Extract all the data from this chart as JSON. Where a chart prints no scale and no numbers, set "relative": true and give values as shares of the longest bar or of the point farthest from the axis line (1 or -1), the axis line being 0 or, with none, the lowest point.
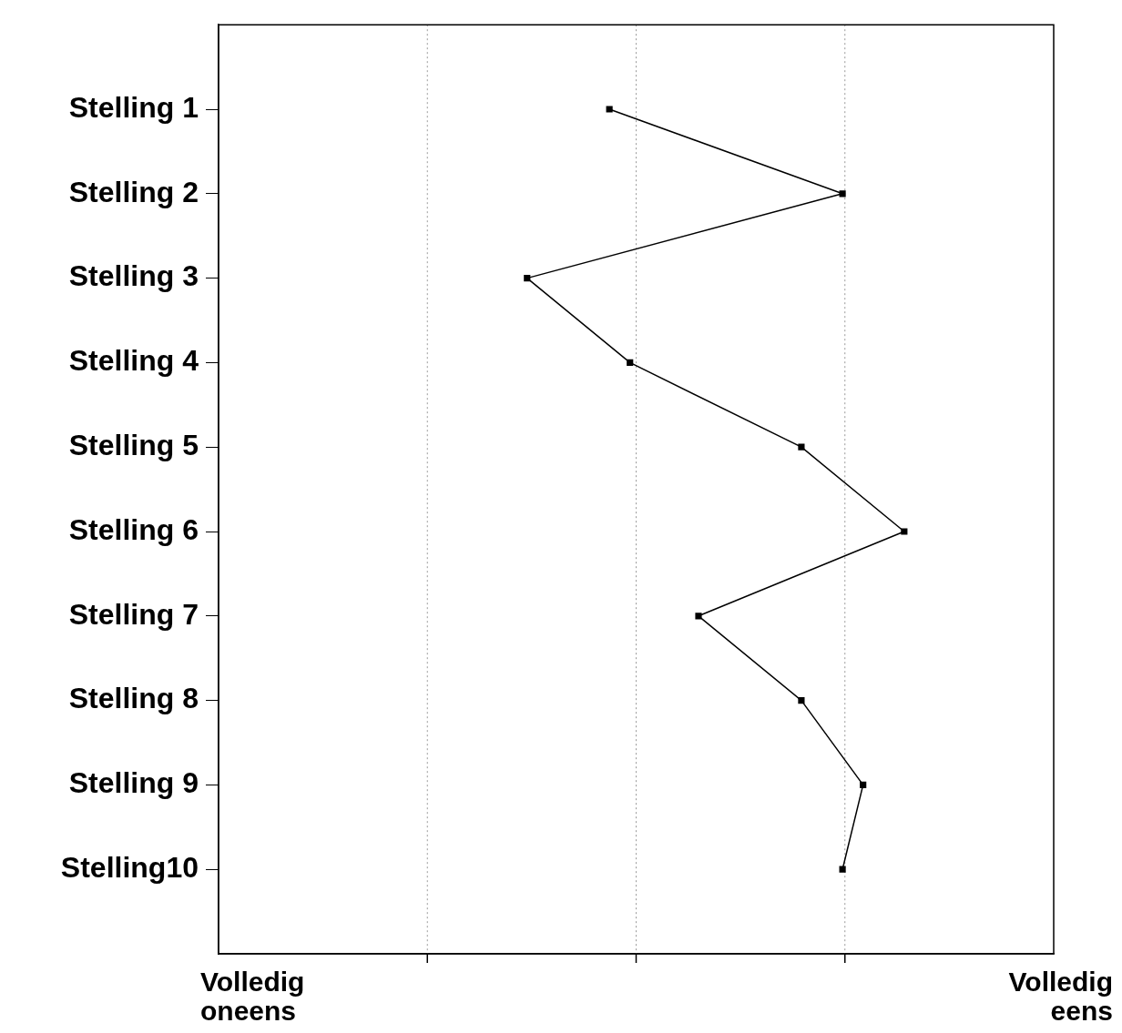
{
  "chart_data": {
    "type": "line",
    "orientation": "horizontal",
    "relative": true,
    "categories": [
      "Stelling 1",
      "Stelling 2",
      "Stelling 3",
      "Stelling 4",
      "Stelling 5",
      "Stelling 6",
      "Stelling 7",
      "Stelling 8",
      "Stelling 9",
      "Stelling10"
    ],
    "series": [
      {
        "color": "#000000",
        "values": [
          0.57,
          0.91,
          0.45,
          0.6,
          0.85,
          1.0,
          0.7,
          0.85,
          0.94,
          0.91
        ]
      }
    ],
    "annotations": [
      "Volledig oneens",
      "Volledig eens"
    ],
    "tick_labels": "y",
    "grid": "x",
    "marker": "square",
    "line_style": "solid"
  }
}
